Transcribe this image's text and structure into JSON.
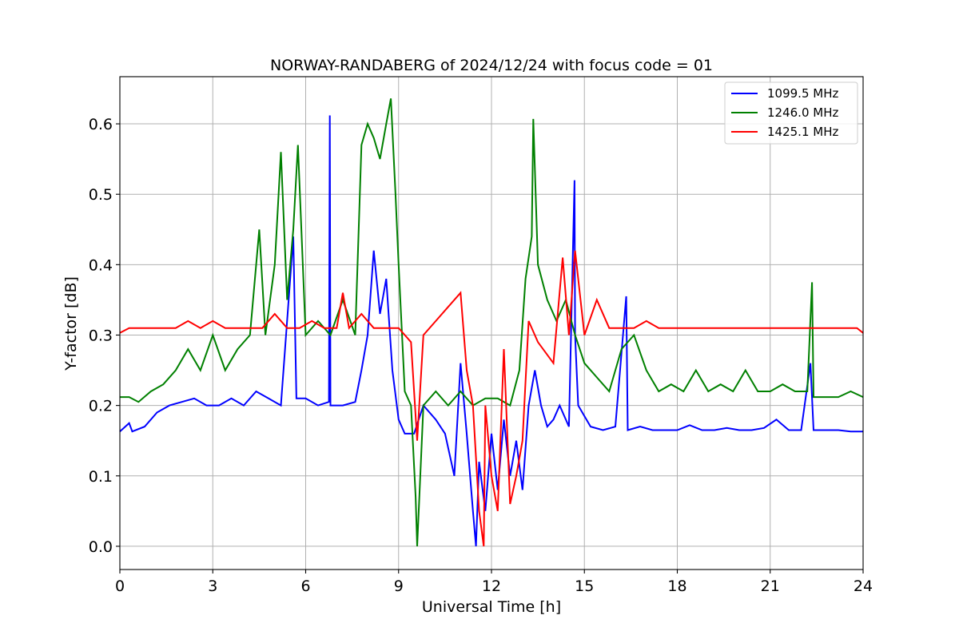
{
  "chart_data": {
    "type": "line",
    "title": "NORWAY-RANDABERG of 2024/12/24 with focus code = 01",
    "xlabel": "Universal Time [h]",
    "ylabel": "Y-factor [dB]",
    "xlim": [
      0,
      24
    ],
    "ylim": [
      -0.033,
      0.667
    ],
    "xticks": [
      0,
      3,
      6,
      9,
      12,
      15,
      18,
      21,
      24
    ],
    "xtick_labels": [
      "0",
      "3",
      "6",
      "9",
      "12",
      "15",
      "18",
      "21",
      "24"
    ],
    "yticks": [
      0.0,
      0.1,
      0.2,
      0.3,
      0.4,
      0.5,
      0.6
    ],
    "ytick_labels": [
      "0.0",
      "0.1",
      "0.2",
      "0.3",
      "0.4",
      "0.5",
      "0.6"
    ],
    "grid": true,
    "legend_position": "top-right",
    "series": [
      {
        "name": "1099.5 MHz",
        "color": "#0000ff",
        "x": [
          0,
          0.3,
          0.4,
          0.8,
          1.2,
          1.6,
          2.0,
          2.4,
          2.8,
          3.2,
          3.6,
          4.0,
          4.4,
          4.8,
          5.2,
          5.6,
          5.7,
          6.0,
          6.4,
          6.75,
          6.78,
          6.8,
          7.2,
          7.6,
          7.8,
          8.0,
          8.2,
          8.4,
          8.6,
          8.8,
          9.0,
          9.2,
          9.5,
          9.8,
          10.2,
          10.5,
          10.8,
          11.0,
          11.2,
          11.4,
          11.5,
          11.6,
          11.8,
          12.0,
          12.2,
          12.4,
          12.6,
          12.8,
          13.0,
          13.2,
          13.4,
          13.6,
          13.8,
          14.0,
          14.2,
          14.5,
          14.68,
          14.7,
          14.8,
          15.2,
          15.6,
          16.0,
          16.35,
          16.4,
          16.8,
          17.2,
          17.6,
          18.0,
          18.4,
          18.8,
          19.2,
          19.6,
          20.0,
          20.4,
          20.8,
          21.2,
          21.6,
          22.0,
          22.3,
          22.4,
          22.8,
          23.2,
          23.6,
          24.0
        ],
        "y": [
          0.163,
          0.175,
          0.163,
          0.17,
          0.19,
          0.2,
          0.205,
          0.21,
          0.2,
          0.2,
          0.21,
          0.2,
          0.22,
          0.21,
          0.2,
          0.44,
          0.21,
          0.21,
          0.2,
          0.205,
          0.612,
          0.2,
          0.2,
          0.205,
          0.25,
          0.3,
          0.42,
          0.33,
          0.38,
          0.25,
          0.18,
          0.16,
          0.16,
          0.2,
          0.18,
          0.16,
          0.1,
          0.26,
          0.16,
          0.05,
          0.0,
          0.12,
          0.05,
          0.16,
          0.08,
          0.18,
          0.1,
          0.15,
          0.08,
          0.2,
          0.25,
          0.2,
          0.17,
          0.18,
          0.2,
          0.17,
          0.52,
          0.3,
          0.2,
          0.17,
          0.165,
          0.17,
          0.355,
          0.165,
          0.17,
          0.165,
          0.165,
          0.165,
          0.172,
          0.165,
          0.165,
          0.168,
          0.165,
          0.165,
          0.168,
          0.18,
          0.165,
          0.165,
          0.26,
          0.165,
          0.165,
          0.165,
          0.163,
          0.163
        ]
      },
      {
        "name": "1246.0 MHz",
        "color": "#008000",
        "x": [
          0,
          0.3,
          0.6,
          1.0,
          1.4,
          1.8,
          2.2,
          2.6,
          3.0,
          3.4,
          3.8,
          4.2,
          4.5,
          4.7,
          5.0,
          5.2,
          5.4,
          5.6,
          5.75,
          6.0,
          6.4,
          6.8,
          7.2,
          7.6,
          7.8,
          8.0,
          8.2,
          8.4,
          8.6,
          8.75,
          8.9,
          9.0,
          9.2,
          9.4,
          9.55,
          9.6,
          9.8,
          10.2,
          10.6,
          11.0,
          11.4,
          11.8,
          12.2,
          12.6,
          12.9,
          13.1,
          13.3,
          13.35,
          13.5,
          13.8,
          14.1,
          14.4,
          14.7,
          15.0,
          15.4,
          15.8,
          16.2,
          16.6,
          17.0,
          17.4,
          17.8,
          18.2,
          18.6,
          19.0,
          19.4,
          19.8,
          20.2,
          20.6,
          21.0,
          21.4,
          21.8,
          22.2,
          22.35,
          22.4,
          22.8,
          23.2,
          23.6,
          24.0
        ],
        "y": [
          0.212,
          0.212,
          0.205,
          0.22,
          0.23,
          0.25,
          0.28,
          0.25,
          0.3,
          0.25,
          0.28,
          0.3,
          0.45,
          0.3,
          0.4,
          0.56,
          0.35,
          0.45,
          0.57,
          0.3,
          0.32,
          0.3,
          0.35,
          0.3,
          0.57,
          0.6,
          0.58,
          0.55,
          0.6,
          0.636,
          0.5,
          0.4,
          0.22,
          0.2,
          0.07,
          0.0,
          0.2,
          0.22,
          0.2,
          0.22,
          0.2,
          0.21,
          0.21,
          0.2,
          0.25,
          0.38,
          0.44,
          0.607,
          0.4,
          0.35,
          0.32,
          0.35,
          0.3,
          0.26,
          0.24,
          0.22,
          0.28,
          0.3,
          0.25,
          0.22,
          0.23,
          0.22,
          0.25,
          0.22,
          0.23,
          0.22,
          0.25,
          0.22,
          0.22,
          0.23,
          0.22,
          0.22,
          0.375,
          0.212,
          0.212,
          0.212,
          0.22,
          0.212
        ]
      },
      {
        "name": "1425.1 MHz",
        "color": "#ff0000",
        "x": [
          0,
          0.3,
          0.6,
          1.0,
          1.4,
          1.8,
          2.2,
          2.6,
          3.0,
          3.4,
          3.8,
          4.2,
          4.6,
          5.0,
          5.4,
          5.8,
          6.2,
          6.6,
          7.0,
          7.2,
          7.4,
          7.8,
          8.2,
          8.6,
          9.0,
          9.4,
          9.6,
          9.8,
          10.2,
          10.6,
          11.0,
          11.2,
          11.4,
          11.6,
          11.75,
          11.8,
          12.0,
          12.2,
          12.4,
          12.6,
          12.8,
          13.0,
          13.2,
          13.5,
          14.0,
          14.3,
          14.5,
          14.7,
          15.0,
          15.4,
          15.8,
          16.2,
          16.6,
          17.0,
          17.4,
          17.8,
          18.2,
          18.6,
          19.0,
          19.4,
          19.8,
          20.2,
          20.6,
          21.0,
          21.4,
          21.8,
          22.2,
          22.6,
          23.0,
          23.4,
          23.8,
          24.0
        ],
        "y": [
          0.303,
          0.31,
          0.31,
          0.31,
          0.31,
          0.31,
          0.32,
          0.31,
          0.32,
          0.31,
          0.31,
          0.31,
          0.31,
          0.33,
          0.31,
          0.31,
          0.32,
          0.31,
          0.31,
          0.36,
          0.31,
          0.33,
          0.31,
          0.31,
          0.31,
          0.29,
          0.15,
          0.3,
          0.32,
          0.34,
          0.36,
          0.25,
          0.2,
          0.05,
          0.0,
          0.2,
          0.1,
          0.05,
          0.28,
          0.06,
          0.1,
          0.15,
          0.32,
          0.29,
          0.26,
          0.41,
          0.3,
          0.42,
          0.3,
          0.35,
          0.31,
          0.31,
          0.31,
          0.32,
          0.31,
          0.31,
          0.31,
          0.31,
          0.31,
          0.31,
          0.31,
          0.31,
          0.31,
          0.31,
          0.31,
          0.31,
          0.31,
          0.31,
          0.31,
          0.31,
          0.31,
          0.303
        ]
      }
    ]
  }
}
